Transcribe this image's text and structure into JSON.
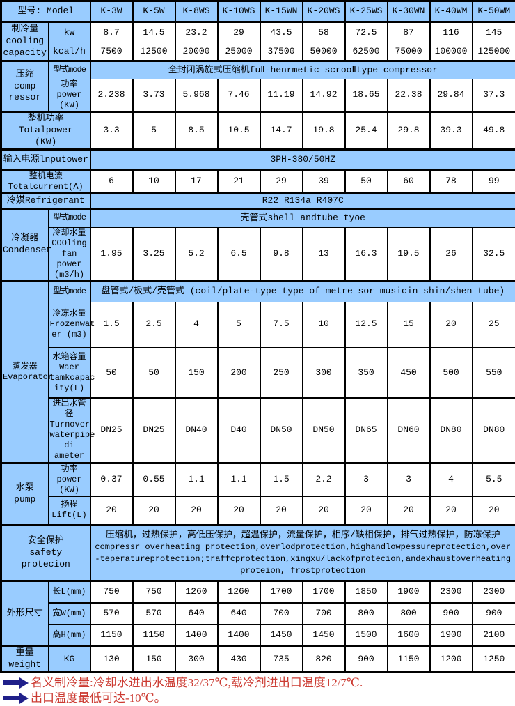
{
  "colors": {
    "cell_blue": "#99CCFF",
    "border": "#000000",
    "note_red": "#CC3B32",
    "arrow_navy": "#20208A"
  },
  "table": {
    "model_label": "型号: Model",
    "models": [
      "K-3W",
      "K-5W",
      "K-8WS",
      "K-10WS",
      "K-15WN",
      "K-20WS",
      "K-25WS",
      "K-30WN",
      "K-40WM",
      "K-50WM"
    ],
    "cooling": {
      "group_label": "制冷量\ncooling\ncapacity",
      "kw_label": "kw",
      "kw_values": [
        "8.7",
        "14.5",
        "23.2",
        "29",
        "43.5",
        "58",
        "72.5",
        "87",
        "116",
        "145"
      ],
      "kcal_label": "kcal/h",
      "kcal_values": [
        "7500",
        "12500",
        "20000",
        "25000",
        "37500",
        "50000",
        "62500",
        "75000",
        "100000",
        "125000"
      ]
    },
    "compressor": {
      "group_label": "压缩\ncomp\nressor",
      "mode_label": "型式mode",
      "mode_value": "全封闭涡旋式压缩机fuⅡ-henrmetic scrooⅡtype compressor",
      "power_label": "功率\npower\n(KW)",
      "power_values": [
        "2.238",
        "3.73",
        "5.968",
        "7.46",
        "11.19",
        "14.92",
        "18.65",
        "22.38",
        "29.84",
        "37.3"
      ]
    },
    "total_power": {
      "label": "整机功率\nTotalpower\n(KW)",
      "values": [
        "3.3",
        "5",
        "8.5",
        "10.5",
        "14.7",
        "19.8",
        "25.4",
        "29.8",
        "39.3",
        "49.8"
      ]
    },
    "input_power": {
      "label": "输入电源lnputower",
      "value": "3PH-380/50HZ"
    },
    "total_current": {
      "label": "整机电流\nTotalcurrent(A)",
      "values": [
        "6",
        "10",
        "17",
        "21",
        "29",
        "39",
        "50",
        "60",
        "78",
        "99"
      ]
    },
    "refrigerant": {
      "label": "冷媒Refrigerant",
      "value": "R22 R134a R407C"
    },
    "condenser": {
      "group_label": "冷凝器\nCondenser",
      "mode_label": "型式mode",
      "mode_value": "壳管式shell andtube tyoe",
      "water_label": "冷却水量\nCOOling\nfan power\n(m3/h)",
      "water_values": [
        "1.95",
        "3.25",
        "5.2",
        "6.5",
        "9.8",
        "13",
        "16.3",
        "19.5",
        "26",
        "32.5"
      ]
    },
    "evaporator": {
      "group_label": "蒸发器\nEvaporator",
      "mode_label": "型式mode",
      "mode_value": "盘管式/板式/壳管式 (coil/plate-type type of metre sor musicin shin/shen tube)",
      "frozen_label": "冷冻水量\nFrozenwat\ner (m3)",
      "frozen_values": [
        "1.5",
        "2.5",
        "4",
        "5",
        "7.5",
        "10",
        "12.5",
        "15",
        "20",
        "25"
      ],
      "tank_label": "水箱容量\nWaer\ntamkcapac\nity(L)",
      "tank_values": [
        "50",
        "50",
        "150",
        "200",
        "250",
        "300",
        "350",
        "450",
        "500",
        "550"
      ],
      "pipe_label": "进出水管径\nTurnover\nwaterpipe\ndi ameter",
      "pipe_values": [
        "DN25",
        "DN25",
        "DN40",
        "D40",
        "DN50",
        "DN50",
        "DN65",
        "DN60",
        "DN80",
        "DN80"
      ]
    },
    "pump": {
      "group_label": "水泵\npump",
      "power_label": "功率power\n(KW)",
      "power_values": [
        "0.37",
        "0.55",
        "1.1",
        "1.1",
        "1.5",
        "2.2",
        "3",
        "3",
        "4",
        "5.5"
      ],
      "lift_label": "扬程\nLift(L)",
      "lift_values": [
        "20",
        "20",
        "20",
        "20",
        "20",
        "20",
        "20",
        "20",
        "20",
        "20"
      ]
    },
    "safety": {
      "label": "安全保护\nsafety protecion",
      "value_cn": "压缩机，过热保护，高低压保护，超温保护，流量保护，相序/缺相保护，排气过热保护，防冻保护",
      "value_en": "compressr overheating protection,overlodprotection,highandlowpessureprotection,over-teperatureprotection;traffcprotection,xingxu/lackofprotecion,andexhaustoverheatingproteion, frostprotection"
    },
    "dimensions": {
      "group_label": "外形尺寸",
      "length_label": "长L(mm)",
      "length_values": [
        "750",
        "750",
        "1260",
        "1260",
        "1700",
        "1700",
        "1850",
        "1900",
        "2300",
        "2300"
      ],
      "width_label": "宽W(mm)",
      "width_values": [
        "570",
        "570",
        "640",
        "640",
        "700",
        "700",
        "800",
        "800",
        "900",
        "900"
      ],
      "height_label": "高H(mm)",
      "height_values": [
        "1150",
        "1150",
        "1400",
        "1400",
        "1450",
        "1450",
        "1500",
        "1600",
        "1900",
        "2100"
      ]
    },
    "weight": {
      "group_label": "重量\nweight",
      "unit_label": "KG",
      "values": [
        "130",
        "150",
        "300",
        "430",
        "735",
        "820",
        "900",
        "1150",
        "1200",
        "1250"
      ]
    }
  },
  "notes": [
    "名义制冷量:冷却水进出水温度32/37℃,载冷剂进出口温度12/7℃.",
    "出口温度最低可达-10℃。"
  ]
}
